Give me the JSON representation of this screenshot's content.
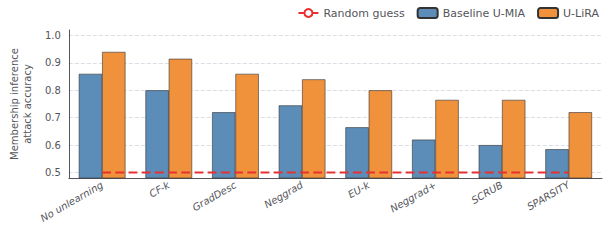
{
  "chart_data": {
    "type": "bar",
    "categories": [
      "No unlearning",
      "CF-k",
      "GradDesc",
      "Neggrad",
      "EU-k",
      "Neggrad+",
      "SCRUB",
      "SPARSITY"
    ],
    "series": [
      {
        "name": "Random guess",
        "type": "line",
        "line_style": "dashed",
        "color": "#e83030",
        "values": [
          0.5,
          0.5,
          0.5,
          0.5,
          0.5,
          0.5,
          0.5,
          0.5
        ]
      },
      {
        "name": "Baseline U-MIA",
        "type": "bar",
        "color": "#5b8db8",
        "values": [
          0.86,
          0.8,
          0.72,
          0.745,
          0.665,
          0.62,
          0.6,
          0.585
        ]
      },
      {
        "name": "U-LiRA",
        "type": "bar",
        "color": "#f0923b",
        "values": [
          0.94,
          0.915,
          0.86,
          0.84,
          0.8,
          0.765,
          0.765,
          0.72
        ]
      }
    ],
    "ylabel": "Membership inference\nattack accuracy",
    "ylim": [
      0.48,
      1.02
    ],
    "yticks": [
      0.5,
      0.6,
      0.7,
      0.8,
      0.9,
      {
        "value": 1.0,
        "label": "1.0"
      }
    ],
    "grid": true,
    "legend": "upper right"
  }
}
